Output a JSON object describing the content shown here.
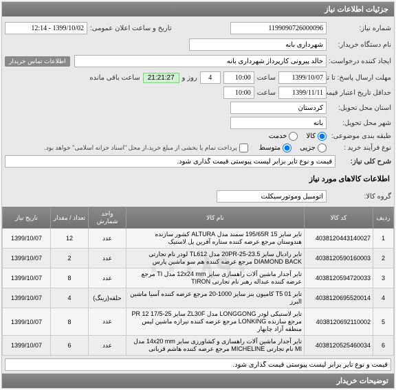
{
  "panel_title": "جزئیات اطلاعات نیاز",
  "form": {
    "need_number_label": "شماره نیاز:",
    "need_number": "1199090726000096",
    "announce_label": "تاریخ و ساعت اعلان عمومی:",
    "announce_value": "1399/10/02 - 12:14",
    "buyer_org_label": "نام دستگاه خریدار:",
    "buyer_org": "شهرداری بانه",
    "creator_label": "ایجاد کننده درخواست:",
    "creator": "خالد پیرونی کارپرداز شهرداری بانه",
    "contact_badge": "اطلاعات تماس خریدار",
    "deadline_answer_label": "مهلت ارسال پاسخ:\nتا تاریخ:",
    "deadline_answer_date": "1399/10/07",
    "hour_label": "ساعت",
    "deadline_answer_time": "10:00",
    "days_label": "4",
    "and_label": "روز و",
    "countdown": "21:21:27",
    "remaining_label": "ساعت باقی مانده",
    "min_credit_label": "حداقل تاریخ اعتبار قیمت: تا تاریخ:",
    "min_credit_date": "1399/11/11",
    "min_credit_time": "10:00",
    "province_label": "استان محل تحویل:",
    "province": "کردستان",
    "city_label": "شهر محل تحویل:",
    "city": "بانه",
    "budget_label": "طبقه بندی موضوعی:",
    "budget_options": {
      "goods": "کالا",
      "service": "خدمت"
    },
    "process_label": "نوع فرآیند خرید :",
    "process_options": {
      "small": "جزیی",
      "medium": "متوسط"
    },
    "payment_note": "پرداخت تمام یا بخشی از مبلغ خرید،از محل \"اسناد خزانه اسلامی\" خواهد بود.",
    "general_desc_label": "شرح کلی نیاز:",
    "general_desc": "قیمت و نوع تایر برابر لیست پیوستی قیمت گذاری شود."
  },
  "goods_section_title": "اطلاعات کالاهای مورد نیاز",
  "goods_group_label": "گروه کالا:",
  "goods_group": "اتومبیل وموتورسیکلت",
  "table": {
    "headers": {
      "idx": "ردیف",
      "code": "کد کالا",
      "name": "نام کالا",
      "unit": "واحد شمارش",
      "qty": "تعداد / مقدار",
      "date": "تاریخ نیاز"
    },
    "rows": [
      {
        "idx": "1",
        "code": "4038120443140027",
        "name": "تایر سایز 195/65R 15 سمند مدل ALTURA کشور سازنده هندوستان مرجع عرضه کننده ستاره آفرین یل لاستیک",
        "unit": "عدد",
        "qty": "12",
        "date": "1399/10/07"
      },
      {
        "idx": "2",
        "code": "4038120590160003",
        "name": "تایر رادیال سایز 20PR-25-23.5 مدل TL612 لودر نام تجارتی DIAMOND BACK مرجع عرضه کننده هم سو ماشین پارس",
        "unit": "عدد",
        "qty": "2",
        "date": "1399/10/07"
      },
      {
        "idx": "3",
        "code": "4038120594720033",
        "name": "تایر آجدار ماشین آلات راهسازی سایز 12x24 mm مدل TI مرجع عرضه کننده عبداله رهبر نام تجارتی TIRON",
        "unit": "عدد",
        "qty": "8",
        "date": "1399/10/07"
      },
      {
        "idx": "4",
        "code": "4038120695520014",
        "name": "تایر T5 01 کامیون بنز سایز 1000-20 مرجع عرضه کننده آسیا ماشین البرز",
        "unit": "حلقه(رینگ)",
        "qty": "4",
        "date": "1399/10/07"
      },
      {
        "idx": "5",
        "code": "4038120692110002",
        "name": "تایر لاستیکی لودر LONGGONG مدل ZL30F سایز 25-17/5 PR 12 مرجع سازنده LONKING مرجع عرضه کننده تیرازه ماشین لیس منطقه آزاد چابهار",
        "unit": "عدد",
        "qty": "8",
        "date": "1399/10/07"
      },
      {
        "idx": "6",
        "code": "4038120525460034",
        "name": "تایر آجدار ماشین آلات راهسازی و کشاورزی سایز 14x20 mm مدل MI نام تجارتی MICHELINE مرجع عرضه کننده هاشم قربانی",
        "unit": "عدد",
        "qty": "6",
        "date": "1399/10/07"
      }
    ]
  },
  "bottom_desc": "قیمت و نوع تایر برابر لیست پیوستی قیمت گذاری شود.",
  "explain_label": "توضیحات خریدار",
  "watermark": "۰۰۰۸۹۰",
  "styling": {
    "header_bg": "#7a7a7a",
    "header_text": "#ffffff",
    "panel_bg": "#e8e8e8",
    "border": "#c0c0c0",
    "green_bg": "#d4f0d4",
    "row_alt": "#ececec",
    "font_size_base": 11,
    "font_size_small": 9
  }
}
